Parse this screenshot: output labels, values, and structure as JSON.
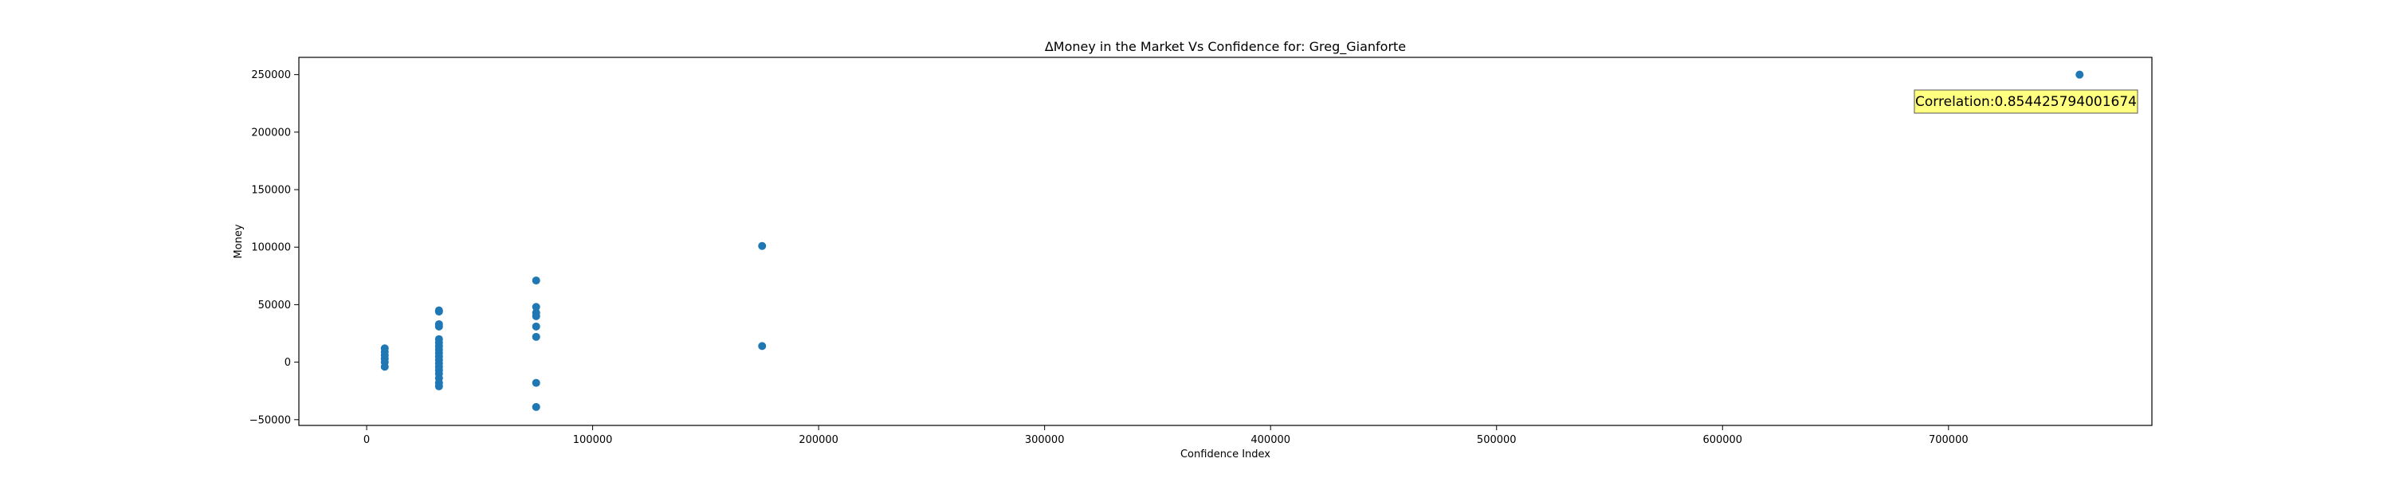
{
  "chart_data": {
    "type": "scatter",
    "title": "ΔMoney in the Market Vs Confidence for: Greg_Gianforte",
    "xlabel": "Confidence Index",
    "ylabel": "Money",
    "xlim": [
      -30000,
      790000
    ],
    "ylim": [
      -55000,
      265000
    ],
    "xticks": [
      0,
      100000,
      200000,
      300000,
      400000,
      500000,
      600000,
      700000
    ],
    "yticks": [
      -50000,
      0,
      50000,
      100000,
      150000,
      200000,
      250000
    ],
    "grid": false,
    "marker_color": "#1f77b4",
    "annotation": {
      "text": "Correlation:0.854425794001674",
      "position": "top-right",
      "background": "#ffff80"
    },
    "points": [
      {
        "x": 8000,
        "y": 12000
      },
      {
        "x": 8000,
        "y": 9000
      },
      {
        "x": 8000,
        "y": 6000
      },
      {
        "x": 8000,
        "y": 3000
      },
      {
        "x": 8000,
        "y": 0
      },
      {
        "x": 8000,
        "y": -4000
      },
      {
        "x": 32000,
        "y": 45000
      },
      {
        "x": 32000,
        "y": 44000
      },
      {
        "x": 32000,
        "y": 33000
      },
      {
        "x": 32000,
        "y": 31000
      },
      {
        "x": 32000,
        "y": 20000
      },
      {
        "x": 32000,
        "y": 17000
      },
      {
        "x": 32000,
        "y": 14000
      },
      {
        "x": 32000,
        "y": 11000
      },
      {
        "x": 32000,
        "y": 8000
      },
      {
        "x": 32000,
        "y": 5000
      },
      {
        "x": 32000,
        "y": 2000
      },
      {
        "x": 32000,
        "y": -1000
      },
      {
        "x": 32000,
        "y": -4000
      },
      {
        "x": 32000,
        "y": -7000
      },
      {
        "x": 32000,
        "y": -10000
      },
      {
        "x": 32000,
        "y": -14000
      },
      {
        "x": 32000,
        "y": -18000
      },
      {
        "x": 32000,
        "y": -21000
      },
      {
        "x": 75000,
        "y": 71000
      },
      {
        "x": 75000,
        "y": 48000
      },
      {
        "x": 75000,
        "y": 43000
      },
      {
        "x": 75000,
        "y": 40000
      },
      {
        "x": 75000,
        "y": 31000
      },
      {
        "x": 75000,
        "y": 22000
      },
      {
        "x": 75000,
        "y": -18000
      },
      {
        "x": 75000,
        "y": -39000
      },
      {
        "x": 175000,
        "y": 101000
      },
      {
        "x": 175000,
        "y": 14000
      },
      {
        "x": 758000,
        "y": 250000
      }
    ]
  }
}
